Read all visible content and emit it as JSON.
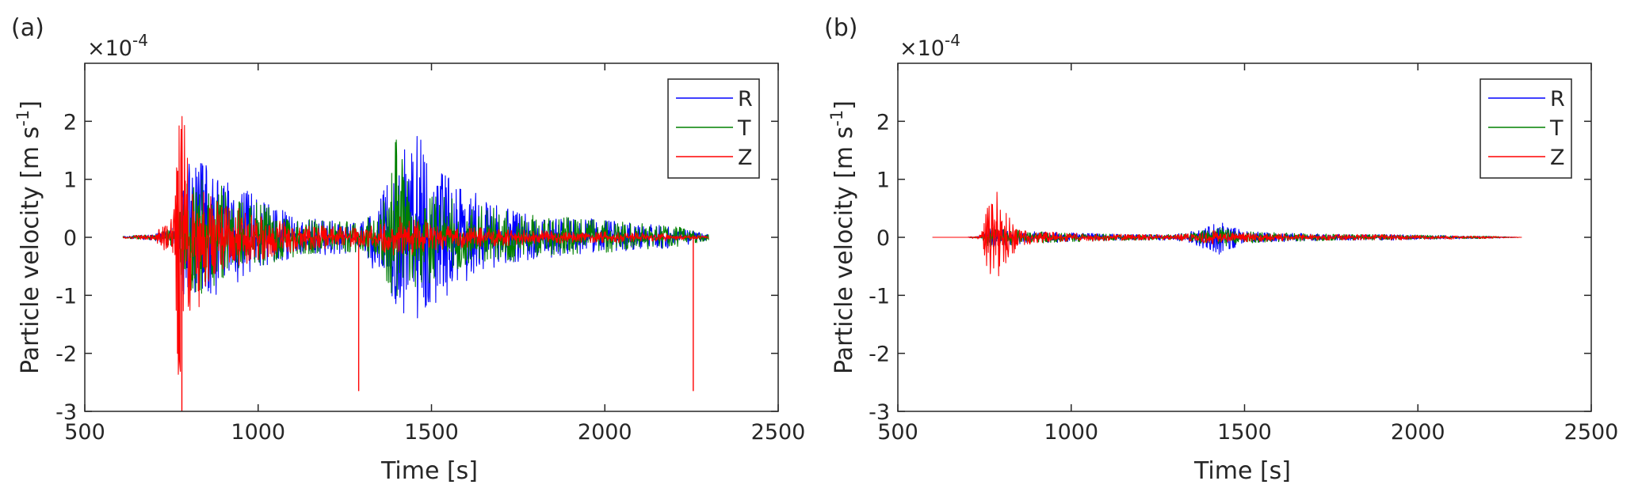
{
  "chart_data": [
    {
      "type": "line",
      "panel_label": "(a)",
      "exponent_label": "×10",
      "exponent_power": "-4",
      "xlabel": "Time [s]",
      "ylabel_main": "Particle velocity [m s",
      "ylabel_sup": "-1",
      "ylabel_close": "]",
      "xlim": [
        500,
        2500
      ],
      "ylim": [
        -3,
        3
      ],
      "xticks": [
        500,
        1000,
        1500,
        2000,
        2500
      ],
      "yticks": [
        -3,
        -2,
        -1,
        0,
        1,
        2
      ],
      "grid": false,
      "legend_position": "top-right",
      "series": [
        {
          "name": "R",
          "color": "#0000ff",
          "x": [
            610,
            700,
            760,
            770,
            780,
            800,
            850,
            900,
            1000,
            1100,
            1200,
            1300,
            1380,
            1400,
            1420,
            1440,
            1460,
            1500,
            1550,
            1600,
            1700,
            1800,
            1900,
            2000,
            2100,
            2200,
            2300
          ],
          "max": [
            0.02,
            0.05,
            0.2,
            0.8,
            1.0,
            1.3,
            1.35,
            1.0,
            0.75,
            0.35,
            0.3,
            0.25,
            1.0,
            1.3,
            1.85,
            1.9,
            1.85,
            1.3,
            1.15,
            0.9,
            0.55,
            0.4,
            0.35,
            0.3,
            0.25,
            0.18,
            0.05
          ],
          "min": [
            -0.02,
            -0.05,
            -0.2,
            -0.6,
            -1.0,
            -1.0,
            -1.1,
            -0.9,
            -0.6,
            -0.35,
            -0.3,
            -0.25,
            -1.0,
            -1.5,
            -1.6,
            -1.7,
            -1.65,
            -1.3,
            -1.1,
            -0.8,
            -0.5,
            -0.4,
            -0.3,
            -0.25,
            -0.22,
            -0.18,
            -0.05
          ]
        },
        {
          "name": "T",
          "color": "#008000",
          "x": [
            610,
            700,
            760,
            770,
            780,
            800,
            850,
            900,
            1000,
            1100,
            1200,
            1300,
            1380,
            1400,
            1420,
            1440,
            1460,
            1500,
            1550,
            1600,
            1700,
            1800,
            1900,
            2000,
            2100,
            2200,
            2300
          ],
          "max": [
            0.02,
            0.05,
            0.2,
            0.8,
            1.0,
            1.0,
            1.0,
            0.9,
            0.6,
            0.35,
            0.3,
            0.25,
            0.9,
            1.9,
            1.2,
            1.0,
            0.9,
            0.8,
            0.7,
            0.6,
            0.5,
            0.4,
            0.35,
            0.3,
            0.25,
            0.2,
            0.05
          ],
          "min": [
            -0.02,
            -0.05,
            -0.2,
            -0.8,
            -0.9,
            -0.95,
            -1.0,
            -0.8,
            -0.6,
            -0.35,
            -0.3,
            -0.25,
            -0.9,
            -1.2,
            -1.0,
            -0.9,
            -0.85,
            -0.8,
            -0.6,
            -0.5,
            -0.45,
            -0.35,
            -0.3,
            -0.28,
            -0.22,
            -0.18,
            -0.05
          ]
        },
        {
          "name": "Z",
          "color": "#ff0000",
          "x": [
            610,
            700,
            760,
            770,
            780,
            800,
            850,
            900,
            1000,
            1100,
            1200,
            1300,
            1380,
            1400,
            1420,
            1440,
            1460,
            1500,
            1550,
            1600,
            1700,
            1800,
            1900,
            2000,
            2100,
            2200,
            2300
          ],
          "max": [
            0.02,
            0.05,
            0.5,
            2.4,
            2.4,
            1.5,
            0.8,
            0.6,
            0.4,
            0.25,
            0.2,
            0.15,
            0.3,
            0.4,
            0.4,
            0.35,
            0.3,
            0.25,
            0.2,
            0.2,
            0.15,
            0.12,
            0.1,
            0.1,
            0.08,
            0.06,
            0.02
          ],
          "min": [
            -0.02,
            -0.05,
            -0.5,
            -2.7,
            -3.0,
            -1.8,
            -0.8,
            -0.6,
            -0.4,
            -0.25,
            -0.2,
            -0.15,
            -0.3,
            -0.4,
            -0.4,
            -0.35,
            -0.3,
            -0.25,
            -0.2,
            -0.2,
            -0.15,
            -0.12,
            -0.1,
            -0.1,
            -0.08,
            -0.06,
            -0.02
          ],
          "spikes": [
            {
              "x": 780,
              "y": -3.0
            },
            {
              "x": 1290,
              "y": -2.65
            },
            {
              "x": 2255,
              "y": -2.65
            }
          ]
        }
      ]
    },
    {
      "type": "line",
      "panel_label": "(b)",
      "exponent_label": "×10",
      "exponent_power": "-4",
      "xlabel": "Time [s]",
      "ylabel_main": "Particle velocity [m s",
      "ylabel_sup": "-1",
      "ylabel_close": "]",
      "xlim": [
        500,
        2500
      ],
      "ylim": [
        -3,
        3
      ],
      "xticks": [
        500,
        1000,
        1500,
        2000,
        2500
      ],
      "yticks": [
        -3,
        -2,
        -1,
        0,
        1,
        2
      ],
      "grid": false,
      "legend_position": "top-right",
      "series": [
        {
          "name": "R",
          "color": "#0000ff",
          "x": [
            600,
            700,
            740,
            760,
            780,
            800,
            850,
            900,
            1000,
            1100,
            1200,
            1300,
            1370,
            1400,
            1420,
            1440,
            1460,
            1500,
            1600,
            1700,
            1800,
            1900,
            2000,
            2100,
            2200,
            2300
          ],
          "max": [
            0.0,
            0.0,
            0.02,
            0.15,
            0.2,
            0.15,
            0.12,
            0.1,
            0.08,
            0.06,
            0.05,
            0.05,
            0.15,
            0.3,
            0.3,
            0.25,
            0.2,
            0.12,
            0.08,
            0.06,
            0.05,
            0.05,
            0.04,
            0.03,
            0.02,
            0.0
          ],
          "min": [
            0.0,
            0.0,
            -0.02,
            -0.15,
            -0.2,
            -0.15,
            -0.12,
            -0.1,
            -0.08,
            -0.06,
            -0.05,
            -0.05,
            -0.15,
            -0.3,
            -0.35,
            -0.25,
            -0.2,
            -0.12,
            -0.08,
            -0.06,
            -0.05,
            -0.05,
            -0.04,
            -0.03,
            -0.02,
            0.0
          ]
        },
        {
          "name": "T",
          "color": "#008000",
          "x": [
            600,
            700,
            740,
            760,
            780,
            800,
            850,
            900,
            1000,
            1100,
            1200,
            1300,
            1370,
            1400,
            1420,
            1440,
            1460,
            1500,
            1600,
            1700,
            1800,
            1900,
            2000,
            2100,
            2200,
            2300
          ],
          "max": [
            0.0,
            0.0,
            0.02,
            0.15,
            0.2,
            0.15,
            0.12,
            0.1,
            0.08,
            0.06,
            0.05,
            0.05,
            0.1,
            0.15,
            0.2,
            0.15,
            0.15,
            0.1,
            0.08,
            0.06,
            0.05,
            0.05,
            0.04,
            0.03,
            0.02,
            0.0
          ],
          "min": [
            0.0,
            0.0,
            -0.02,
            -0.15,
            -0.2,
            -0.15,
            -0.12,
            -0.1,
            -0.08,
            -0.06,
            -0.05,
            -0.05,
            -0.1,
            -0.15,
            -0.2,
            -0.15,
            -0.15,
            -0.1,
            -0.08,
            -0.06,
            -0.05,
            -0.05,
            -0.04,
            -0.03,
            -0.02,
            0.0
          ]
        },
        {
          "name": "Z",
          "color": "#ff0000",
          "x": [
            600,
            700,
            740,
            760,
            780,
            800,
            850,
            900,
            1000,
            1100,
            1200,
            1300,
            1370,
            1400,
            1420,
            1440,
            1460,
            1500,
            1600,
            1700,
            1800,
            1900,
            2000,
            2100,
            2200,
            2300
          ],
          "max": [
            0.0,
            0.0,
            0.05,
            0.6,
            1.0,
            0.5,
            0.15,
            0.1,
            0.08,
            0.06,
            0.05,
            0.05,
            0.08,
            0.12,
            0.12,
            0.1,
            0.08,
            0.08,
            0.06,
            0.05,
            0.05,
            0.05,
            0.04,
            0.03,
            0.02,
            0.0
          ],
          "min": [
            0.0,
            0.0,
            -0.05,
            -0.8,
            -1.25,
            -0.6,
            -0.15,
            -0.1,
            -0.08,
            -0.06,
            -0.05,
            -0.05,
            -0.08,
            -0.12,
            -0.12,
            -0.1,
            -0.08,
            -0.08,
            -0.06,
            -0.05,
            -0.05,
            -0.05,
            -0.04,
            -0.03,
            -0.02,
            0.0
          ]
        }
      ]
    }
  ]
}
